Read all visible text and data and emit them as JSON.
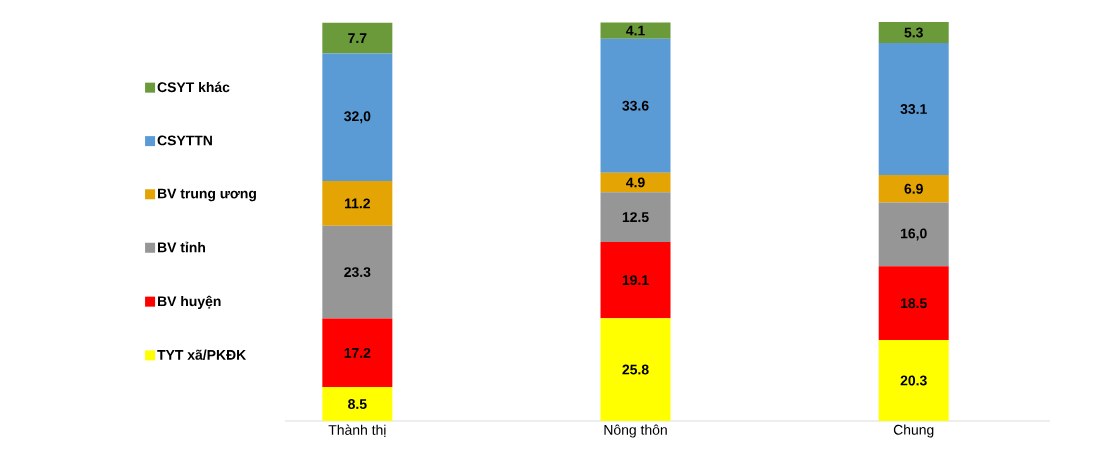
{
  "chart_data": {
    "type": "bar",
    "stacked": true,
    "legend": "left",
    "categories": [
      "Thành thị",
      "Nông thôn",
      "Chung"
    ],
    "series": [
      {
        "name": "TYT xã/PKĐK",
        "color": "#ffff00",
        "values": [
          8.5,
          25.8,
          20.3
        ],
        "value_labels": [
          "8.5",
          "25.8",
          "20.3"
        ]
      },
      {
        "name": "BV huyện",
        "color": "#ff0000",
        "values": [
          17.2,
          19.1,
          18.5
        ],
        "value_labels": [
          "17.2",
          "19.1",
          "18.5"
        ]
      },
      {
        "name": "BV tỉnh",
        "color": "#969696",
        "values": [
          23.3,
          12.5,
          16.0
        ],
        "value_labels": [
          "23.3",
          "12.5",
          "16,0"
        ]
      },
      {
        "name": "BV trung ương",
        "color": "#e3a404",
        "values": [
          11.2,
          4.9,
          6.9
        ],
        "value_labels": [
          "11.2",
          "4.9",
          "6.9"
        ]
      },
      {
        "name": "CSYTTN",
        "color": "#5b9bd5",
        "values": [
          32.0,
          33.6,
          33.1
        ],
        "value_labels": [
          "32,0",
          "33.6",
          "33.1"
        ]
      },
      {
        "name": "CSYT khác",
        "color": "#6a9a3a",
        "values": [
          7.7,
          4.1,
          5.3
        ],
        "value_labels": [
          "7.7",
          "4.1",
          "5.3"
        ]
      }
    ]
  }
}
